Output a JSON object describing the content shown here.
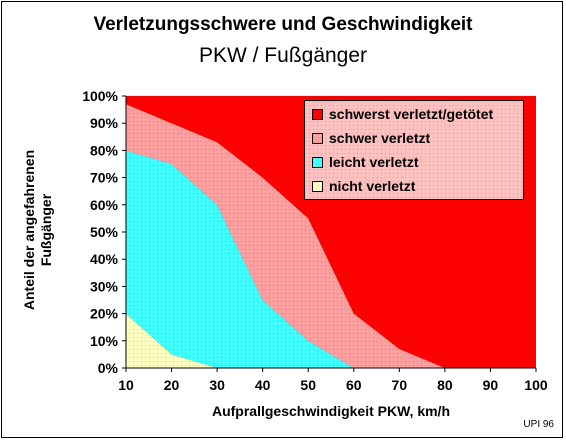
{
  "title": "Verletzungsschwere und Geschwindigkeit",
  "subtitle": "PKW / Fußgänger",
  "ylabel_line1": "Anteil der angefahrenen",
  "ylabel_line2": "Fußgänger",
  "xlabel": "Aufprallgeschwindigkeit PKW, km/h",
  "credit": "UPI 96",
  "chart_data": {
    "type": "area",
    "stacked": true,
    "x": [
      10,
      20,
      30,
      40,
      50,
      60,
      70,
      80,
      90,
      100
    ],
    "xlim": [
      10,
      100
    ],
    "ylim": [
      0,
      100
    ],
    "x_tick_labels": [
      "10",
      "20",
      "30",
      "40",
      "50",
      "60",
      "70",
      "80",
      "90",
      "100"
    ],
    "y_tick_labels": [
      "0%",
      "10%",
      "20%",
      "30%",
      "40%",
      "50%",
      "60%",
      "70%",
      "80%",
      "90%",
      "100%"
    ],
    "legend_position": "top-right",
    "series": [
      {
        "name": "nicht verletzt",
        "color": "#ffffc0",
        "values": [
          20,
          5,
          0,
          0,
          0,
          0,
          0,
          0,
          0,
          0
        ]
      },
      {
        "name": "leicht verletzt",
        "color": "#40ffff",
        "values": [
          60,
          70,
          60,
          25,
          10,
          0,
          0,
          0,
          0,
          0
        ]
      },
      {
        "name": "schwer verletzt",
        "color": "#ff9e9e",
        "values": [
          17,
          15,
          23,
          45,
          45,
          20,
          7,
          0,
          0,
          0
        ]
      },
      {
        "name": "schwerst verletzt/getötet",
        "color": "#ff0000",
        "values": [
          3,
          10,
          17,
          30,
          45,
          80,
          93,
          100,
          100,
          100
        ]
      }
    ],
    "legend_order": [
      "schwerst verletzt/getötet",
      "schwer verletzt",
      "leicht verletzt",
      "nicht verletzt"
    ]
  }
}
